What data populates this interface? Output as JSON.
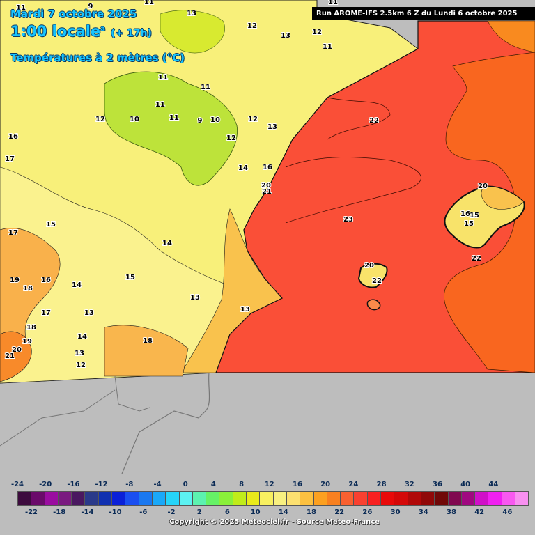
{
  "header": {
    "date": "Mardi 7 octobre 2025",
    "time": "1:00 locale",
    "time_sup": "a",
    "lead": "(+ 17h)",
    "field": "Températures à 2 mètres (°C)"
  },
  "run_banner": "Run AROME-IFS 2.5km 6 Z du Lundi 6 octobre 2025",
  "map_labels": [
    {
      "text": "11"
    },
    {
      "text": "9"
    },
    {
      "text": "11"
    },
    {
      "text": "13"
    },
    {
      "text": "11"
    },
    {
      "text": "12"
    },
    {
      "text": "13"
    },
    {
      "text": "12"
    },
    {
      "text": "11"
    },
    {
      "text": "11"
    },
    {
      "text": "11"
    },
    {
      "text": "12"
    },
    {
      "text": "11"
    },
    {
      "text": "11"
    },
    {
      "text": "10"
    },
    {
      "text": "9"
    },
    {
      "text": "10"
    },
    {
      "text": "12"
    },
    {
      "text": "12"
    },
    {
      "text": "13"
    },
    {
      "text": "16"
    },
    {
      "text": "17"
    },
    {
      "text": "14"
    },
    {
      "text": "16"
    },
    {
      "text": "20"
    },
    {
      "text": "21"
    },
    {
      "text": "15"
    },
    {
      "text": "17"
    },
    {
      "text": "14"
    },
    {
      "text": "19"
    },
    {
      "text": "18"
    },
    {
      "text": "16"
    },
    {
      "text": "14"
    },
    {
      "text": "15"
    },
    {
      "text": "13"
    },
    {
      "text": "17"
    },
    {
      "text": "13"
    },
    {
      "text": "18"
    },
    {
      "text": "14"
    },
    {
      "text": "13"
    },
    {
      "text": "19"
    },
    {
      "text": "18"
    },
    {
      "text": "20"
    },
    {
      "text": "21"
    },
    {
      "text": "13"
    },
    {
      "text": "12"
    },
    {
      "text": "22"
    },
    {
      "text": "23"
    },
    {
      "text": "20"
    },
    {
      "text": "16"
    },
    {
      "text": "15"
    },
    {
      "text": "15"
    },
    {
      "text": "22"
    },
    {
      "text": "20"
    },
    {
      "text": "22"
    }
  ],
  "legend": {
    "top_ticks": [
      "-24",
      "-20",
      "-16",
      "-12",
      "-8",
      "-4",
      "0",
      "4",
      "8",
      "12",
      "16",
      "20",
      "24",
      "28",
      "32",
      "36",
      "40",
      "44"
    ],
    "bottom_ticks": [
      "-22",
      "-18",
      "-14",
      "-10",
      "-6",
      "-2",
      "2",
      "6",
      "10",
      "14",
      "18",
      "22",
      "26",
      "30",
      "34",
      "38",
      "42",
      "46"
    ],
    "colors": [
      "#3d0b3e",
      "#6a0a6a",
      "#9a0ca0",
      "#7a1a80",
      "#4a1860",
      "#2a3a8a",
      "#1030b0",
      "#0a20d8",
      "#1a4ef0",
      "#1a78f0",
      "#1aa8f8",
      "#26d4f8",
      "#5cf2f2",
      "#5cf2b0",
      "#66f266",
      "#8af03a",
      "#c0ec1a",
      "#eaea1a",
      "#f8f060",
      "#f8f080",
      "#fce070",
      "#fcc040",
      "#fca020",
      "#f88020",
      "#f86030",
      "#f84030",
      "#f82020",
      "#e80a0a",
      "#d40808",
      "#b00808",
      "#900808",
      "#700808",
      "#800850",
      "#a00880",
      "#d010c8",
      "#f020f0",
      "#f858f0",
      "#f890f0"
    ]
  },
  "copyright": "Copyright © 2025 Meteociel.fr - Source Meteo-France",
  "colors": {
    "sea_warm": "#fa4f37",
    "sea_hot": "#f9661f",
    "land_yellow": "#f8f07a",
    "land_green": "#bde33a",
    "land_orange": "#f9b14b",
    "no_data": "#bdbdbd"
  }
}
